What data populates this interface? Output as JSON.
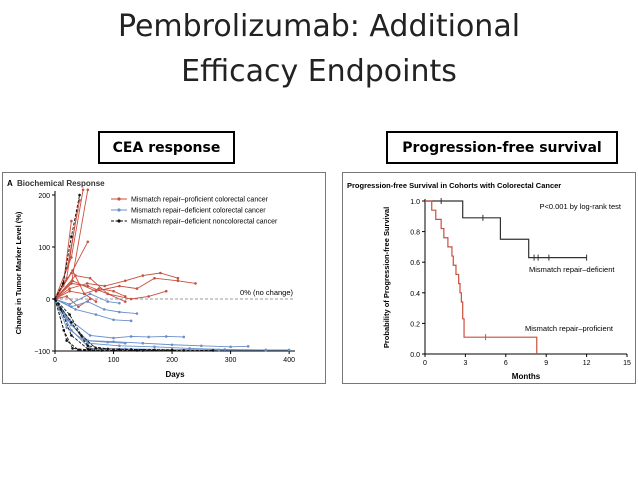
{
  "slide": {
    "title_line1": "Pembrolizumab: Additional",
    "title_line2": "Efficacy Endpoints"
  },
  "labels": {
    "left": "CEA response",
    "right": "Progression-free survival"
  },
  "colors": {
    "proficient": "#c8503f",
    "deficient": "#6a8fc8",
    "noncolorectal": "#111111",
    "km_proficient": "#c8503f",
    "km_deficient": "#333333"
  },
  "chart_data": [
    {
      "type": "line",
      "panel_letter": "A",
      "title": "Biochemical Response",
      "xlabel": "Days",
      "ylabel": "Change in Tumor Marker Level (%)",
      "xlim": [
        0,
        410
      ],
      "ylim": [
        -100,
        200
      ],
      "xticks": [
        0,
        100,
        200,
        300,
        400
      ],
      "yticks": [
        -100,
        0,
        100,
        200
      ],
      "reference_line": {
        "y": 0,
        "label": "0% (no change)"
      },
      "legend_position": "top-right",
      "series": [
        {
          "group": "proficient",
          "name": "Mismatch repair–proficient colorectal cancer",
          "lines": [
            [
              [
                0,
                0
              ],
              [
                28,
                30
              ],
              [
                56,
                210
              ]
            ],
            [
              [
                0,
                0
              ],
              [
                21,
                60
              ],
              [
                42,
                190
              ]
            ],
            [
              [
                0,
                0
              ],
              [
                28,
                80
              ],
              [
                48,
                210
              ]
            ],
            [
              [
                0,
                0
              ],
              [
                20,
                40
              ],
              [
                38,
                170
              ]
            ],
            [
              [
                0,
                0
              ],
              [
                14,
                25
              ],
              [
                28,
                150
              ]
            ],
            [
              [
                0,
                0
              ],
              [
                28,
                50
              ],
              [
                56,
                110
              ]
            ],
            [
              [
                0,
                0
              ],
              [
                30,
                35
              ],
              [
                70,
                15
              ],
              [
                110,
                25
              ],
              [
                140,
                20
              ],
              [
                170,
                40
              ],
              [
                210,
                35
              ],
              [
                240,
                30
              ]
            ],
            [
              [
                0,
                0
              ],
              [
                25,
                20
              ],
              [
                55,
                30
              ],
              [
                85,
                25
              ],
              [
                120,
                35
              ],
              [
                150,
                45
              ],
              [
                180,
                50
              ],
              [
                210,
                40
              ]
            ],
            [
              [
                0,
                0
              ],
              [
                35,
                45
              ],
              [
                60,
                40
              ],
              [
                90,
                10
              ],
              [
                130,
                0
              ],
              [
                160,
                5
              ],
              [
                190,
                15
              ]
            ],
            [
              [
                0,
                0
              ],
              [
                28,
                30
              ],
              [
                56,
                25
              ],
              [
                90,
                10
              ],
              [
                120,
                -5
              ]
            ],
            [
              [
                0,
                0
              ],
              [
                25,
                15
              ],
              [
                50,
                10
              ],
              [
                75,
                20
              ],
              [
                100,
                15
              ],
              [
                120,
                5
              ]
            ],
            [
              [
                0,
                0
              ],
              [
                30,
                55
              ],
              [
                50,
                10
              ],
              [
                70,
                -5
              ]
            ],
            [
              [
                0,
                0
              ],
              [
                20,
                5
              ],
              [
                40,
                -15
              ],
              [
                60,
                0
              ]
            ]
          ]
        },
        {
          "group": "deficient",
          "name": "Mismatch repair–deficient colorectal cancer",
          "lines": [
            [
              [
                0,
                0
              ],
              [
                25,
                -40
              ],
              [
                60,
                -70
              ],
              [
                100,
                -75
              ],
              [
                130,
                -72
              ],
              [
                160,
                -73
              ],
              [
                190,
                -72
              ],
              [
                220,
                -73
              ]
            ],
            [
              [
                0,
                0
              ],
              [
                28,
                -50
              ],
              [
                56,
                -80
              ],
              [
                100,
                -82
              ],
              [
                150,
                -85
              ],
              [
                200,
                -88
              ],
              [
                250,
                -90
              ],
              [
                300,
                -92
              ],
              [
                330,
                -91
              ]
            ],
            [
              [
                0,
                0
              ],
              [
                21,
                -40
              ],
              [
                56,
                -85
              ],
              [
                110,
                -90
              ],
              [
                170,
                -92
              ],
              [
                230,
                -95
              ],
              [
                290,
                -97
              ],
              [
                360,
                -98
              ]
            ],
            [
              [
                0,
                0
              ],
              [
                28,
                -60
              ],
              [
                60,
                -95
              ],
              [
                120,
                -96
              ],
              [
                200,
                -97
              ],
              [
                280,
                -98
              ],
              [
                360,
                -98
              ],
              [
                400,
                -98
              ]
            ],
            [
              [
                0,
                0
              ],
              [
                35,
                -20
              ],
              [
                70,
                -30
              ],
              [
                100,
                -40
              ],
              [
                130,
                -42
              ]
            ],
            [
              [
                0,
                0
              ],
              [
                25,
                -10
              ],
              [
                60,
                10
              ],
              [
                90,
                -5
              ],
              [
                110,
                -8
              ]
            ],
            [
              [
                0,
                0
              ],
              [
                28,
                -15
              ],
              [
                56,
                -5
              ],
              [
                84,
                -20
              ],
              [
                110,
                -25
              ],
              [
                140,
                -28
              ]
            ],
            [
              [
                0,
                0
              ],
              [
                20,
                -55
              ],
              [
                50,
                -80
              ],
              [
                90,
                -83
              ],
              [
                120,
                -85
              ]
            ]
          ]
        },
        {
          "group": "noncolorectal",
          "name": "Mismatch repair–deficient noncolorectal cancer",
          "lines": [
            [
              [
                0,
                0
              ],
              [
                15,
                -60
              ],
              [
                30,
                -95
              ],
              [
                60,
                -98
              ],
              [
                100,
                -99
              ],
              [
                140,
                -99
              ]
            ],
            [
              [
                0,
                0
              ],
              [
                20,
                -80
              ],
              [
                40,
                -98
              ],
              [
                80,
                -99
              ],
              [
                150,
                -99
              ],
              [
                220,
                -99
              ],
              [
                270,
                -99
              ]
            ],
            [
              [
                0,
                0
              ],
              [
                28,
                -45
              ],
              [
                56,
                -90
              ],
              [
                90,
                -96
              ],
              [
                130,
                -97
              ],
              [
                170,
                -98
              ]
            ],
            [
              [
                0,
                0
              ],
              [
                25,
                -30
              ],
              [
                45,
                -70
              ],
              [
                70,
                -95
              ],
              [
                110,
                -97
              ]
            ],
            [
              [
                0,
                0
              ],
              [
                10,
                -20
              ],
              [
                28,
                -70
              ],
              [
                56,
                -96
              ],
              [
                200,
                -98
              ]
            ],
            [
              [
                0,
                0
              ],
              [
                14,
                30
              ],
              [
                28,
                120
              ],
              [
                42,
                200
              ]
            ]
          ]
        }
      ]
    },
    {
      "type": "line",
      "title": "Progression-free Survival in Cohorts with Colorectal Cancer",
      "xlabel": "Months",
      "ylabel": "Probability of Progression-free Survival",
      "xlim": [
        0,
        15
      ],
      "ylim": [
        0,
        1.0
      ],
      "xticks": [
        0,
        3,
        6,
        9,
        12,
        15
      ],
      "yticks": [
        0.0,
        0.2,
        0.4,
        0.6,
        0.8,
        1.0
      ],
      "annotation": "P<0.001 by log-rank test",
      "series": [
        {
          "name": "Mismatch repair–deficient",
          "group": "km_deficient",
          "steps": [
            [
              0,
              1.0
            ],
            [
              2.8,
              1.0
            ],
            [
              2.8,
              0.89
            ],
            [
              5.6,
              0.89
            ],
            [
              5.6,
              0.75
            ],
            [
              7.7,
              0.75
            ],
            [
              7.7,
              0.63
            ],
            [
              12.0,
              0.63
            ]
          ],
          "censors": [
            [
              1.2,
              1.0
            ],
            [
              4.3,
              0.89
            ],
            [
              8.1,
              0.63
            ],
            [
              8.4,
              0.63
            ],
            [
              9.2,
              0.63
            ],
            [
              12.0,
              0.63
            ]
          ]
        },
        {
          "name": "Mismatch repair–proficient",
          "group": "km_proficient",
          "steps": [
            [
              0,
              1.0
            ],
            [
              0.5,
              1.0
            ],
            [
              0.5,
              0.94
            ],
            [
              0.8,
              0.94
            ],
            [
              0.8,
              0.88
            ],
            [
              1.2,
              0.88
            ],
            [
              1.2,
              0.82
            ],
            [
              1.4,
              0.82
            ],
            [
              1.4,
              0.76
            ],
            [
              1.7,
              0.76
            ],
            [
              1.7,
              0.7
            ],
            [
              2.0,
              0.7
            ],
            [
              2.0,
              0.64
            ],
            [
              2.1,
              0.64
            ],
            [
              2.1,
              0.58
            ],
            [
              2.3,
              0.58
            ],
            [
              2.3,
              0.52
            ],
            [
              2.5,
              0.52
            ],
            [
              2.5,
              0.46
            ],
            [
              2.6,
              0.46
            ],
            [
              2.6,
              0.4
            ],
            [
              2.7,
              0.4
            ],
            [
              2.7,
              0.34
            ],
            [
              2.8,
              0.34
            ],
            [
              2.8,
              0.23
            ],
            [
              2.9,
              0.23
            ],
            [
              2.9,
              0.11
            ],
            [
              8.3,
              0.11
            ],
            [
              8.3,
              0.0
            ]
          ],
          "censors": [
            [
              4.5,
              0.11
            ]
          ]
        }
      ]
    }
  ]
}
